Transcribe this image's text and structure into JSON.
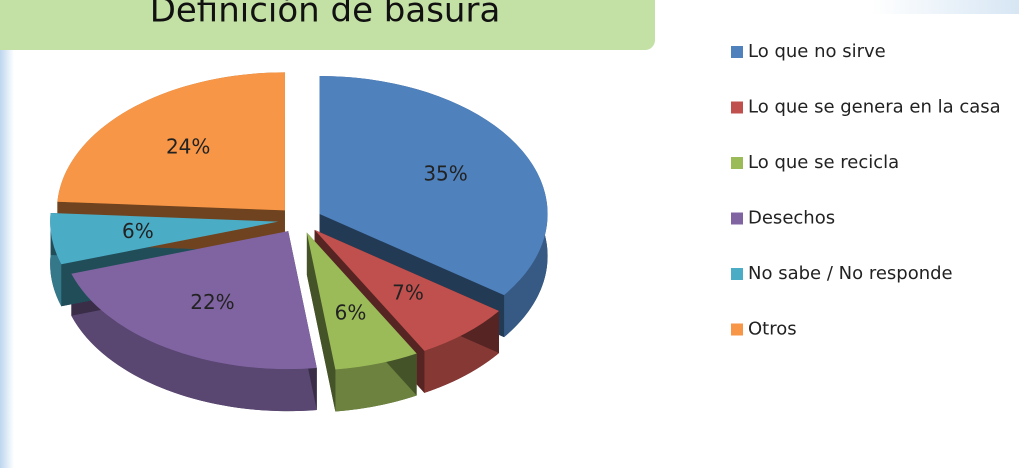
{
  "chart_data": {
    "type": "pie",
    "title": "Definición de basura",
    "categories": [
      "Lo que no sirve",
      "Lo que se genera en la casa",
      "Lo que se recicla",
      "Desechos",
      "No sabe / No responde",
      "Otros"
    ],
    "values": [
      35,
      7,
      6,
      22,
      6,
      24
    ],
    "value_labels": [
      "35%",
      "7%",
      "6%",
      "22%",
      "6%",
      "24%"
    ],
    "colors": [
      "#4f81bd",
      "#c0504d",
      "#9bbb59",
      "#8064a2",
      "#4bacc6",
      "#f79646"
    ]
  }
}
